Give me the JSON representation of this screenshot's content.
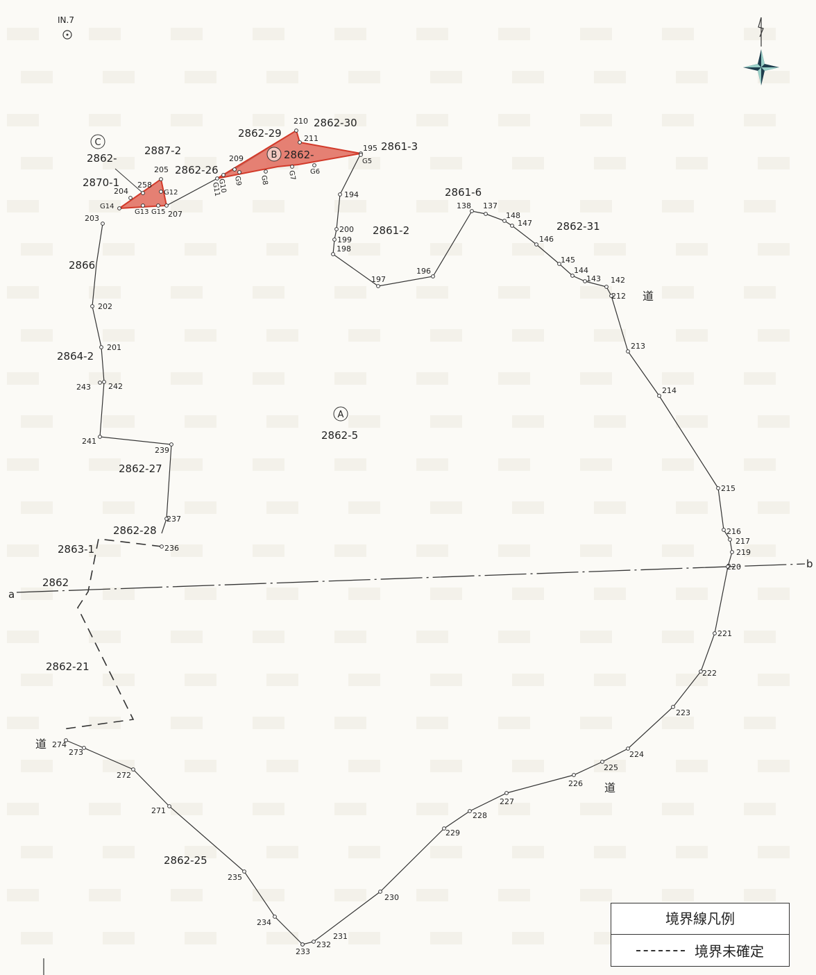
{
  "reference_point": {
    "label": "IN.7"
  },
  "north_arrow": {
    "icon": "north-arrow-icon"
  },
  "areas": {
    "A": {
      "letter": "A",
      "parcel": "2862-5"
    },
    "B": {
      "letter": "B",
      "parcel": "2862-"
    },
    "C": {
      "letter": "C",
      "parcel": "2862-"
    }
  },
  "parcels": [
    "2870-1",
    "2887-2",
    "2862-26",
    "2862-29",
    "2862-30",
    "2861-3",
    "2861-6",
    "2861-2",
    "2862-31",
    "2866",
    "2864-2",
    "2862-27",
    "2862-28",
    "2863-1",
    "2862",
    "2862-21",
    "2862-25"
  ],
  "roads": [
    "道",
    "道",
    "道"
  ],
  "section_line": {
    "start": "a",
    "end": "b"
  },
  "points": [
    "203",
    "202",
    "201",
    "242",
    "243",
    "241",
    "239",
    "237",
    "236",
    "194",
    "200",
    "199",
    "198",
    "197",
    "196",
    "138",
    "137",
    "148",
    "147",
    "146",
    "145",
    "144",
    "143",
    "142",
    "212",
    "213",
    "214",
    "215",
    "216",
    "217",
    "219",
    "220",
    "221",
    "222",
    "223",
    "224",
    "225",
    "226",
    "227",
    "228",
    "229",
    "230",
    "231",
    "232",
    "233",
    "234",
    "235",
    "271",
    "272",
    "273",
    "274",
    "204",
    "258",
    "205",
    "207",
    "209",
    "210",
    "211",
    "195"
  ],
  "g_points": [
    "G14",
    "G13",
    "G15",
    "G12",
    "G11",
    "G10",
    "G9",
    "G8",
    "G7",
    "G6",
    "G5"
  ],
  "colors": {
    "highlight_fill": "#e06a5c",
    "highlight_stroke": "#d23a2a",
    "line": "#333333"
  },
  "legend": {
    "title": "境界線凡例",
    "item": "境界未確定"
  }
}
